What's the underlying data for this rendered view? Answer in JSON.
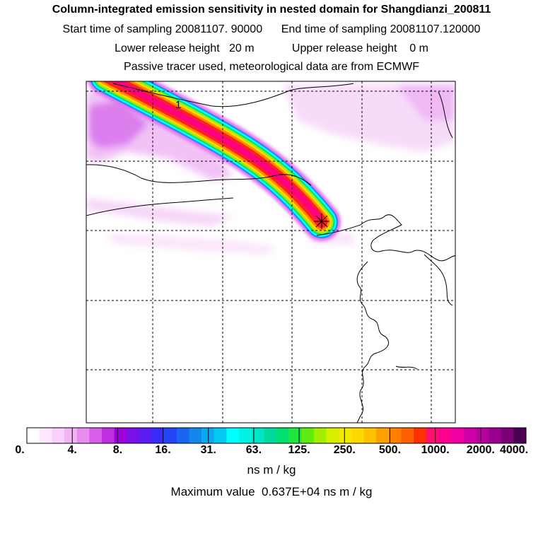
{
  "header": {
    "title": "Column-integrated emission sensitivity in nested domain for Shangdianzi_200811",
    "sampling": "Start time of sampling 20081107. 90000      End time of sampling 20081107.120000",
    "release": "Lower release height   20 m            Upper release height    0 m",
    "tracer": "Passive tracer used, meteorological data are from ECMWF"
  },
  "map": {
    "contour_label": "1",
    "release_marker": "release-site"
  },
  "chart_data": {
    "type": "heatmap",
    "title": "Column-integrated emission sensitivity in nested domain for Shangdianzi_200811",
    "units": "ns m / kg",
    "colorbar": {
      "tick_labels": [
        "0.",
        "4.",
        "8.",
        "16.",
        "31.",
        "63.",
        "125.",
        "250.",
        "500.",
        "1000.",
        "2000.",
        "4000."
      ],
      "colors": [
        "#ffffff",
        "#fde8fd",
        "#f9d0fb",
        "#f3b4f6",
        "#e98cf1",
        "#d95ee9",
        "#c02ee0",
        "#a000dc",
        "#7a10e6",
        "#5a1cf2",
        "#3a2cf8",
        "#2444f6",
        "#1a66f0",
        "#1288ec",
        "#0aaaf0",
        "#06c8f2",
        "#00ffff",
        "#00f2e6",
        "#00e6c4",
        "#00da9c",
        "#00e070",
        "#20e640",
        "#60ec10",
        "#a0ee00",
        "#d6f000",
        "#f2e800",
        "#ffd800",
        "#ffc000",
        "#ffa000",
        "#ff8000",
        "#ff6000",
        "#ff3000",
        "#ff1070",
        "#ff0090",
        "#f000a0",
        "#d000a8",
        "#b800a0",
        "#9a0090",
        "#7a0078",
        "#4c0050"
      ]
    },
    "max_value": "Maximum value  0.637E+04 ns m / kg"
  },
  "colors": {
    "grid": "#000000",
    "coast": "#000000",
    "background": "#ffffff"
  }
}
